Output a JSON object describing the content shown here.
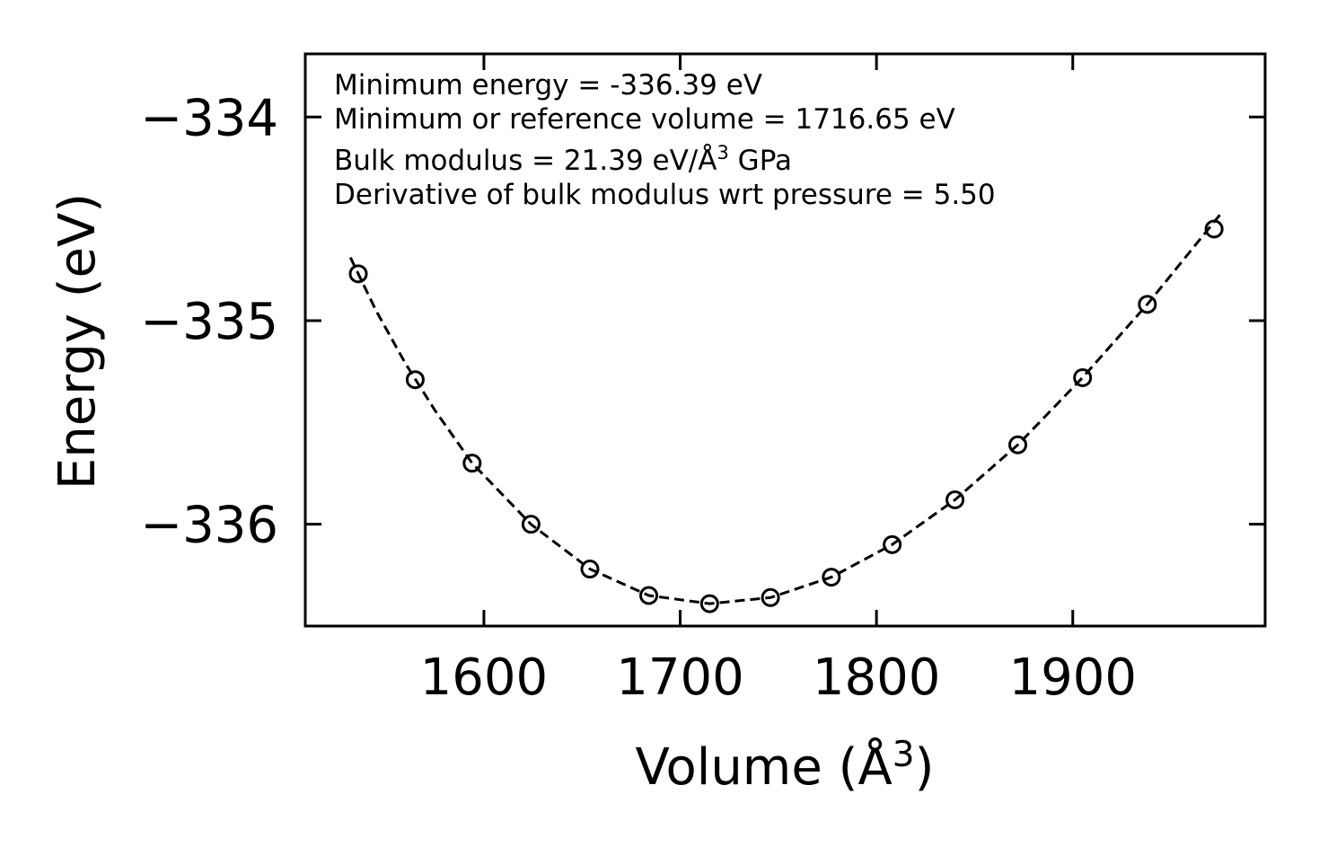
{
  "chart_data": {
    "type": "scatter",
    "xlabel_base": "Volume (Å",
    "xlabel_sup": "3",
    "xlabel_close": ")",
    "ylabel": "Energy (eV)",
    "xlim": [
      1509,
      1998
    ],
    "ylim": [
      -336.5,
      -333.69
    ],
    "x_ticks": [
      1600,
      1700,
      1800,
      1900
    ],
    "x_tick_labels": [
      "1600",
      "1700",
      "1800",
      "1900"
    ],
    "y_ticks": [
      -334,
      -335,
      -336
    ],
    "y_tick_labels": [
      "−334",
      "−335",
      "−336"
    ],
    "annotations": {
      "line1": "Minimum energy = -336.39 eV",
      "line2": "Minimum or reference volume = 1716.65 eV",
      "line3_pre": "Bulk modulus = 21.39 eV/Å",
      "line3_sup": "3",
      "line3_post": " GPa",
      "line4": "Derivative of bulk modulus wrt pressure = 5.50"
    },
    "series": [
      {
        "name": "data",
        "style": "open-circle",
        "x": [
          1536,
          1565,
          1594,
          1624,
          1654,
          1684,
          1715,
          1746,
          1777,
          1808,
          1840,
          1872,
          1905,
          1938,
          1972
        ],
        "y": [
          -334.77,
          -335.29,
          -335.7,
          -336.0,
          -336.22,
          -336.35,
          -336.39,
          -336.36,
          -336.26,
          -336.1,
          -335.88,
          -335.61,
          -335.28,
          -334.92,
          -334.55
        ]
      },
      {
        "name": "fit",
        "style": "dashed-line",
        "x": [
          1532,
          1545,
          1560,
          1575,
          1594,
          1624,
          1654,
          1684,
          1715,
          1746,
          1777,
          1808,
          1840,
          1872,
          1905,
          1938,
          1975
        ],
        "y": [
          -334.69,
          -334.95,
          -335.21,
          -335.44,
          -335.7,
          -336.0,
          -336.22,
          -336.35,
          -336.39,
          -336.36,
          -336.26,
          -336.1,
          -335.88,
          -335.61,
          -335.28,
          -334.92,
          -334.48
        ]
      }
    ],
    "colors": {
      "axis": "#000000",
      "marker": "#000000",
      "background": "#ffffff"
    }
  }
}
